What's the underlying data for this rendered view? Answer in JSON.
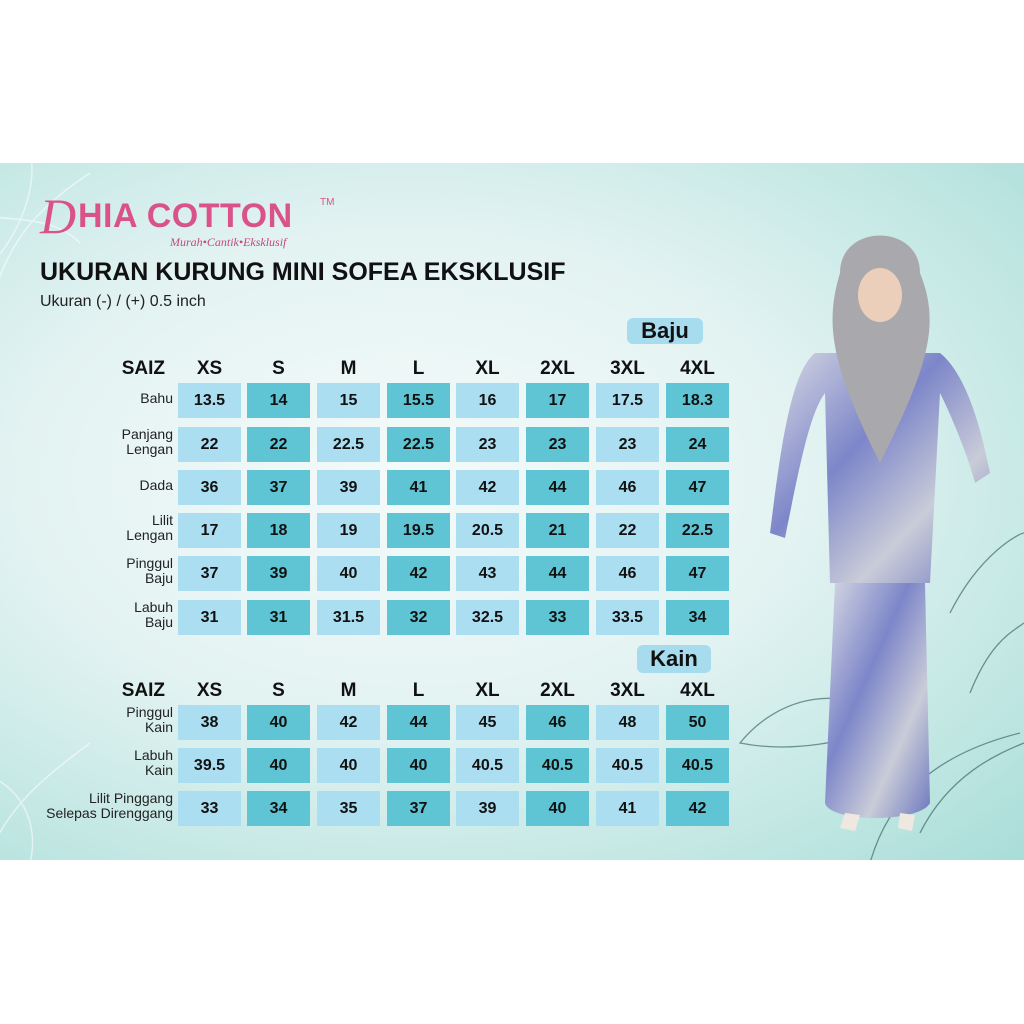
{
  "brand": {
    "initial": "D",
    "name": "HIA COTTON",
    "trademark": "TM",
    "tagline": "Murah•Cantik•Eksklusif"
  },
  "title": "UKURAN KURUNG MINI SOFEA EKSKLUSIF",
  "subtitle": "Ukuran (-) / (+) 0.5 inch",
  "colors": {
    "light_cell": "#acdef1",
    "dark_cell": "#5fc4d3",
    "brand": "#d9538a"
  },
  "baju": {
    "label": "Baju",
    "size_header": "SAIZ",
    "sizes": [
      "XS",
      "S",
      "M",
      "L",
      "XL",
      "2XL",
      "3XL",
      "4XL"
    ],
    "rows": [
      {
        "label": [
          "Bahu"
        ],
        "values": [
          "13.5",
          "14",
          "15",
          "15.5",
          "16",
          "17",
          "17.5",
          "18.3"
        ]
      },
      {
        "label": [
          "Panjang",
          "Lengan"
        ],
        "values": [
          "22",
          "22",
          "22.5",
          "22.5",
          "23",
          "23",
          "23",
          "24"
        ]
      },
      {
        "label": [
          "Dada"
        ],
        "values": [
          "36",
          "37",
          "39",
          "41",
          "42",
          "44",
          "46",
          "47"
        ]
      },
      {
        "label": [
          "Lilit",
          "Lengan"
        ],
        "values": [
          "17",
          "18",
          "19",
          "19.5",
          "20.5",
          "21",
          "22",
          "22.5"
        ]
      },
      {
        "label": [
          "Pinggul",
          "Baju"
        ],
        "values": [
          "37",
          "39",
          "40",
          "42",
          "43",
          "44",
          "46",
          "47"
        ]
      },
      {
        "label": [
          "Labuh",
          "Baju"
        ],
        "values": [
          "31",
          "31",
          "31.5",
          "32",
          "32.5",
          "33",
          "33.5",
          "34"
        ]
      }
    ]
  },
  "kain": {
    "label": "Kain",
    "size_header": "SAIZ",
    "sizes": [
      "XS",
      "S",
      "M",
      "L",
      "XL",
      "2XL",
      "3XL",
      "4XL"
    ],
    "rows": [
      {
        "label": [
          "Pinggul",
          "Kain"
        ],
        "values": [
          "38",
          "40",
          "42",
          "44",
          "45",
          "46",
          "48",
          "50"
        ]
      },
      {
        "label": [
          "Labuh",
          "Kain"
        ],
        "values": [
          "39.5",
          "40",
          "40",
          "40",
          "40.5",
          "40.5",
          "40.5",
          "40.5"
        ]
      },
      {
        "label": [
          "Lilit Pinggang",
          "Selepas Direnggang"
        ],
        "values": [
          "33",
          "34",
          "35",
          "37",
          "39",
          "40",
          "41",
          "42"
        ]
      }
    ]
  }
}
